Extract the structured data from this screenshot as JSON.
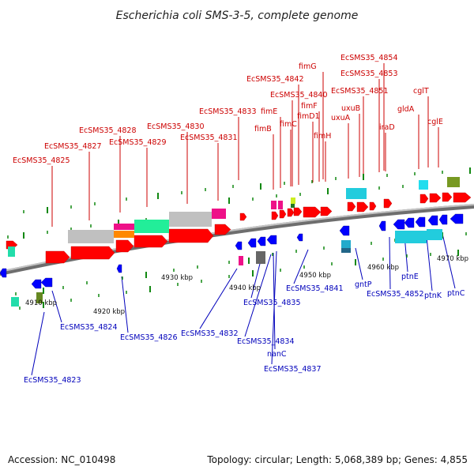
{
  "title": "Escherichia coli SMS-3-5, complete genome",
  "footer": {
    "accession": "Accession: NC_010498",
    "summary": "Topology: circular; Length: 5,068,389 bp; Genes: 4,855"
  },
  "colors": {
    "forward_gene": "#ff0000",
    "reverse_gene": "#0000ff",
    "top_label": "#cc0000",
    "bottom_label": "#0000bb",
    "backbone": "#888888",
    "tick": "#118811"
  },
  "kbp_labels": [
    {
      "text": "4910 kbp"
    },
    {
      "text": "4920 kbp"
    },
    {
      "text": "4930 kbp"
    },
    {
      "text": "4940 kbp"
    },
    {
      "text": "4950 kbp"
    },
    {
      "text": "4960 kbp"
    },
    {
      "text": "4970 kbp"
    }
  ],
  "top_labels": [
    {
      "text": "EcSMS35_4825"
    },
    {
      "text": "EcSMS35_4827"
    },
    {
      "text": "EcSMS35_4828"
    },
    {
      "text": "EcSMS35_4829"
    },
    {
      "text": "EcSMS35_4830"
    },
    {
      "text": "EcSMS35_4831"
    },
    {
      "text": "EcSMS35_4833"
    },
    {
      "text": "fimB"
    },
    {
      "text": "fimE"
    },
    {
      "text": "fimC"
    },
    {
      "text": "EcSMS35_4840"
    },
    {
      "text": "EcSMS35_4842"
    },
    {
      "text": "fimG"
    },
    {
      "text": "fimF"
    },
    {
      "text": "fimD1"
    },
    {
      "text": "fimH"
    },
    {
      "text": "uxuA"
    },
    {
      "text": "uxuB"
    },
    {
      "text": "EcSMS35_4851"
    },
    {
      "text": "EcSMS35_4853"
    },
    {
      "text": "EcSMS35_4854"
    },
    {
      "text": "iraD"
    },
    {
      "text": "gldA"
    },
    {
      "text": "cglT"
    },
    {
      "text": "cglE"
    }
  ],
  "bottom_labels": [
    {
      "text": "EcSMS35_4823"
    },
    {
      "text": "EcSMS35_4824"
    },
    {
      "text": "EcSMS35_4826"
    },
    {
      "text": "EcSMS35_4832"
    },
    {
      "text": "EcSMS35_4835"
    },
    {
      "text": "EcSMS35_4834"
    },
    {
      "text": "nanC"
    },
    {
      "text": "EcSMS35_4837"
    },
    {
      "text": "EcSMS35_4841"
    },
    {
      "text": "gntP"
    },
    {
      "text": "EcSMS35_4852"
    },
    {
      "text": "ptnE"
    },
    {
      "text": "ptnK"
    },
    {
      "text": "ptnC"
    }
  ]
}
